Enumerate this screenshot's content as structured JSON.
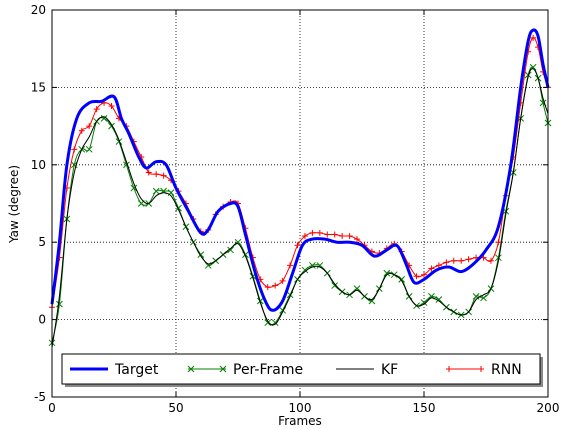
{
  "chart_data": {
    "type": "line",
    "xlabel": "Frames",
    "ylabel": "Yaw (degree)",
    "xlim": [
      0,
      200
    ],
    "ylim": [
      -5,
      20
    ],
    "xticks": [
      0,
      50,
      100,
      150,
      200
    ],
    "yticks": [
      -5,
      0,
      5,
      10,
      15,
      20
    ],
    "grid": true,
    "legend_position": "bottom",
    "series": [
      {
        "name": "Target",
        "color": "#0000ff",
        "marker": "none",
        "points": [
          [
            0,
            1
          ],
          [
            3,
            5
          ],
          [
            6,
            10
          ],
          [
            10,
            13
          ],
          [
            15,
            14
          ],
          [
            20,
            14.1
          ],
          [
            25,
            14.4
          ],
          [
            28,
            13
          ],
          [
            31,
            12
          ],
          [
            35,
            10.5
          ],
          [
            38,
            9.8
          ],
          [
            42,
            10.2
          ],
          [
            46,
            10
          ],
          [
            50,
            8.5
          ],
          [
            55,
            7
          ],
          [
            60,
            5.6
          ],
          [
            63,
            5.8
          ],
          [
            67,
            7
          ],
          [
            72,
            7.5
          ],
          [
            75,
            7.3
          ],
          [
            78,
            5.5
          ],
          [
            82,
            3
          ],
          [
            86,
            1.2
          ],
          [
            89,
            0.6
          ],
          [
            93,
            1.2
          ],
          [
            97,
            3
          ],
          [
            101,
            4.8
          ],
          [
            105,
            5.2
          ],
          [
            110,
            5.2
          ],
          [
            115,
            5
          ],
          [
            120,
            5
          ],
          [
            125,
            4.8
          ],
          [
            130,
            4.1
          ],
          [
            135,
            4.5
          ],
          [
            138,
            4.8
          ],
          [
            140,
            4.6
          ],
          [
            143,
            3.5
          ],
          [
            146,
            2.4
          ],
          [
            150,
            2.6
          ],
          [
            155,
            3.2
          ],
          [
            160,
            3.4
          ],
          [
            165,
            3.1
          ],
          [
            170,
            3.6
          ],
          [
            175,
            4.5
          ],
          [
            180,
            6
          ],
          [
            185,
            10
          ],
          [
            189,
            15
          ],
          [
            192,
            18
          ],
          [
            194,
            18.7
          ],
          [
            196,
            18.3
          ],
          [
            198,
            16.5
          ],
          [
            200,
            15
          ]
        ]
      },
      {
        "name": "Per-Frame",
        "color": "#008000",
        "marker": "x",
        "points": [
          [
            0,
            -1.5
          ],
          [
            3,
            1
          ],
          [
            6,
            6.5
          ],
          [
            9,
            10
          ],
          [
            12,
            11
          ],
          [
            15,
            11
          ],
          [
            18,
            12.8
          ],
          [
            21,
            13
          ],
          [
            24,
            12.5
          ],
          [
            27,
            11.5
          ],
          [
            30,
            10
          ],
          [
            33,
            8.5
          ],
          [
            36,
            7.5
          ],
          [
            39,
            7.5
          ],
          [
            42,
            8.3
          ],
          [
            45,
            8.3
          ],
          [
            48,
            8.2
          ],
          [
            51,
            7.2
          ],
          [
            54,
            6
          ],
          [
            57,
            5
          ],
          [
            60,
            4.2
          ],
          [
            63,
            3.5
          ],
          [
            66,
            3.8
          ],
          [
            69,
            4.2
          ],
          [
            72,
            4.5
          ],
          [
            75,
            5
          ],
          [
            78,
            4.2
          ],
          [
            81,
            2.8
          ],
          [
            84,
            1.2
          ],
          [
            87,
            -0.2
          ],
          [
            90,
            -0.2
          ],
          [
            93,
            0.6
          ],
          [
            96,
            1.6
          ],
          [
            99,
            2.6
          ],
          [
            102,
            3.2
          ],
          [
            105,
            3.5
          ],
          [
            108,
            3.5
          ],
          [
            111,
            3
          ],
          [
            114,
            2.2
          ],
          [
            117,
            1.8
          ],
          [
            120,
            1.6
          ],
          [
            123,
            2
          ],
          [
            126,
            1.5
          ],
          [
            129,
            1.2
          ],
          [
            132,
            2
          ],
          [
            135,
            3
          ],
          [
            138,
            2.9
          ],
          [
            141,
            2.6
          ],
          [
            144,
            1.5
          ],
          [
            147,
            0.9
          ],
          [
            150,
            1.1
          ],
          [
            153,
            1.5
          ],
          [
            156,
            1.3
          ],
          [
            159,
            0.8
          ],
          [
            162,
            0.5
          ],
          [
            165,
            0.3
          ],
          [
            168,
            0.5
          ],
          [
            171,
            1.5
          ],
          [
            174,
            1.4
          ],
          [
            177,
            2
          ],
          [
            180,
            4
          ],
          [
            183,
            7
          ],
          [
            186,
            9.5
          ],
          [
            189,
            13
          ],
          [
            192,
            15.8
          ],
          [
            194,
            16.3
          ],
          [
            196,
            15.6
          ],
          [
            198,
            14
          ],
          [
            200,
            12.7
          ]
        ]
      },
      {
        "name": "KF",
        "color": "#000000",
        "marker": "none",
        "points": [
          [
            0,
            -1.8
          ],
          [
            3,
            1.5
          ],
          [
            6,
            6.5
          ],
          [
            9,
            9.5
          ],
          [
            12,
            11
          ],
          [
            15,
            11.8
          ],
          [
            18,
            12.8
          ],
          [
            21,
            13.1
          ],
          [
            24,
            12.6
          ],
          [
            27,
            11.6
          ],
          [
            30,
            10.2
          ],
          [
            33,
            8.8
          ],
          [
            36,
            7.8
          ],
          [
            39,
            7.5
          ],
          [
            42,
            8
          ],
          [
            45,
            8.2
          ],
          [
            48,
            8
          ],
          [
            51,
            7.1
          ],
          [
            54,
            6
          ],
          [
            57,
            5
          ],
          [
            60,
            4.1
          ],
          [
            63,
            3.6
          ],
          [
            66,
            3.8
          ],
          [
            69,
            4.2
          ],
          [
            72,
            4.6
          ],
          [
            75,
            4.9
          ],
          [
            78,
            4.1
          ],
          [
            81,
            2.7
          ],
          [
            84,
            1.1
          ],
          [
            87,
            -0.1
          ],
          [
            90,
            -0.3
          ],
          [
            93,
            0.5
          ],
          [
            96,
            1.5
          ],
          [
            99,
            2.6
          ],
          [
            102,
            3.1
          ],
          [
            105,
            3.4
          ],
          [
            108,
            3.4
          ],
          [
            111,
            3
          ],
          [
            114,
            2.3
          ],
          [
            117,
            1.8
          ],
          [
            120,
            1.6
          ],
          [
            123,
            1.9
          ],
          [
            126,
            1.5
          ],
          [
            129,
            1.3
          ],
          [
            132,
            2
          ],
          [
            135,
            2.9
          ],
          [
            138,
            2.9
          ],
          [
            141,
            2.5
          ],
          [
            144,
            1.5
          ],
          [
            147,
            0.9
          ],
          [
            150,
            1
          ],
          [
            153,
            1.4
          ],
          [
            156,
            1.2
          ],
          [
            159,
            0.8
          ],
          [
            162,
            0.5
          ],
          [
            165,
            0.3
          ],
          [
            168,
            0.5
          ],
          [
            171,
            1.3
          ],
          [
            174,
            1.6
          ],
          [
            177,
            2
          ],
          [
            180,
            3.8
          ],
          [
            183,
            6.8
          ],
          [
            186,
            9.5
          ],
          [
            189,
            13
          ],
          [
            192,
            15.7
          ],
          [
            194,
            16.2
          ],
          [
            196,
            15.6
          ],
          [
            198,
            14.3
          ],
          [
            200,
            13.3
          ]
        ]
      },
      {
        "name": "RNN",
        "color": "#ff0000",
        "marker": "+",
        "points": [
          [
            0,
            0.8
          ],
          [
            3,
            4
          ],
          [
            6,
            8.5
          ],
          [
            9,
            11
          ],
          [
            12,
            12.2
          ],
          [
            15,
            12.5
          ],
          [
            18,
            13.6
          ],
          [
            21,
            14
          ],
          [
            24,
            13.8
          ],
          [
            27,
            13
          ],
          [
            30,
            12.5
          ],
          [
            33,
            11.5
          ],
          [
            36,
            10.5
          ],
          [
            39,
            9.5
          ],
          [
            42,
            9.4
          ],
          [
            45,
            9.3
          ],
          [
            48,
            9
          ],
          [
            51,
            8.3
          ],
          [
            54,
            7.5
          ],
          [
            57,
            6.5
          ],
          [
            60,
            5.7
          ],
          [
            63,
            5.8
          ],
          [
            66,
            6.8
          ],
          [
            69,
            7.3
          ],
          [
            72,
            7.6
          ],
          [
            75,
            7.5
          ],
          [
            78,
            5.9
          ],
          [
            81,
            4
          ],
          [
            84,
            2.6
          ],
          [
            87,
            2.1
          ],
          [
            90,
            2.2
          ],
          [
            93,
            2.5
          ],
          [
            96,
            3.5
          ],
          [
            99,
            4.8
          ],
          [
            102,
            5.4
          ],
          [
            105,
            5.6
          ],
          [
            108,
            5.6
          ],
          [
            111,
            5.5
          ],
          [
            114,
            5.5
          ],
          [
            117,
            5.4
          ],
          [
            120,
            5.4
          ],
          [
            123,
            5.2
          ],
          [
            126,
            4.8
          ],
          [
            129,
            4.4
          ],
          [
            132,
            4.3
          ],
          [
            135,
            4.6
          ],
          [
            138,
            4.9
          ],
          [
            141,
            4.4
          ],
          [
            144,
            3.5
          ],
          [
            147,
            2.8
          ],
          [
            150,
            2.9
          ],
          [
            153,
            3.3
          ],
          [
            156,
            3.5
          ],
          [
            159,
            3.7
          ],
          [
            162,
            3.8
          ],
          [
            165,
            3.8
          ],
          [
            168,
            3.9
          ],
          [
            171,
            4
          ],
          [
            174,
            4
          ],
          [
            177,
            3.8
          ],
          [
            180,
            5
          ],
          [
            183,
            8
          ],
          [
            186,
            10.5
          ],
          [
            189,
            14
          ],
          [
            192,
            17.3
          ],
          [
            194,
            18.2
          ],
          [
            196,
            17.6
          ],
          [
            198,
            16
          ],
          [
            200,
            15
          ]
        ]
      }
    ]
  }
}
